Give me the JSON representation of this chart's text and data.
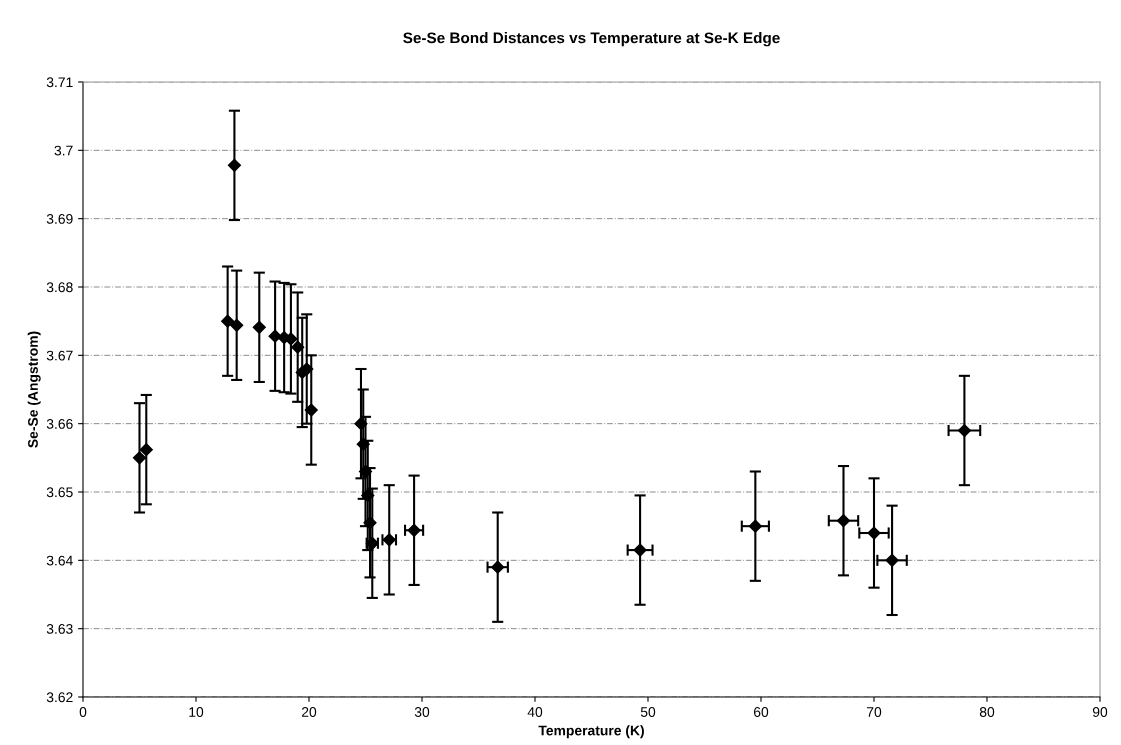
{
  "chart_data": {
    "type": "scatter",
    "title": "Se-Se Bond Distances vs Temperature at Se-K Edge",
    "xlabel": "Temperature (K)",
    "ylabel": "Se-Se (Angstrom)",
    "x": [
      5.0,
      5.6,
      12.8,
      13.4,
      13.6,
      15.6,
      17.0,
      17.8,
      18.4,
      19.0,
      19.4,
      19.8,
      20.2,
      24.6,
      24.8,
      25.0,
      25.2,
      25.4,
      25.6,
      27.1,
      29.3,
      36.7,
      49.3,
      59.5,
      67.3,
      70.0,
      71.6,
      78.0
    ],
    "values": [
      3.655,
      3.6562,
      3.675,
      3.6978,
      3.6744,
      3.6741,
      3.6728,
      3.6726,
      3.6724,
      3.6712,
      3.6675,
      3.668,
      3.662,
      3.66,
      3.657,
      3.653,
      3.6495,
      3.6455,
      3.6425,
      3.643,
      3.6444,
      3.639,
      3.6415,
      3.645,
      3.6458,
      3.644,
      3.64,
      3.659
    ],
    "errors": [
      0.008,
      0.008,
      0.008,
      0.008,
      0.008,
      0.008,
      0.008,
      0.008,
      0.008,
      0.008,
      0.008,
      0.008,
      0.008,
      0.008,
      0.008,
      0.008,
      0.008,
      0.008,
      0.008,
      0.008,
      0.008,
      0.008,
      0.008,
      0.008,
      0.008,
      0.008,
      0.008,
      0.008
    ],
    "xerrors": [
      null,
      null,
      null,
      null,
      null,
      null,
      null,
      null,
      null,
      null,
      null,
      null,
      null,
      null,
      null,
      null,
      null,
      null,
      0.5,
      0.6,
      0.8,
      0.9,
      1.1,
      1.2,
      1.3,
      1.3,
      1.3,
      1.4
    ],
    "color": "#000000",
    "marker": "diamond",
    "xlim": [
      0,
      90
    ],
    "xticks": [
      0,
      10,
      20,
      30,
      40,
      50,
      60,
      70,
      80,
      90
    ],
    "ylim": [
      3.62,
      3.71
    ],
    "yticks": [
      3.62,
      3.63,
      3.64,
      3.65,
      3.66,
      3.67,
      3.68,
      3.69,
      3.7,
      3.71
    ],
    "grid": "y"
  }
}
